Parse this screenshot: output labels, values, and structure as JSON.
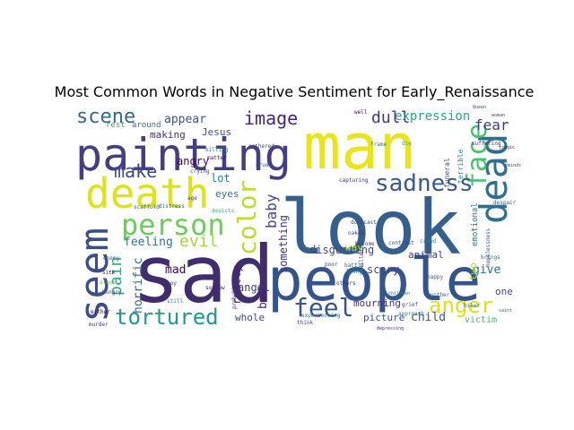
{
  "chart_data": {
    "type": "wordcloud",
    "title": "Most Common Words in Negative Sentiment for Early_Renaissance",
    "colormap": "viridis",
    "background": "#ffffff",
    "words": [
      {
        "text": "sad",
        "weight": 100,
        "vertical": false,
        "color": "#3f2d6e"
      },
      {
        "text": "look",
        "weight": 92,
        "vertical": false,
        "color": "#35608d"
      },
      {
        "text": "people",
        "weight": 88,
        "vertical": false,
        "color": "#33548c"
      },
      {
        "text": "man",
        "weight": 84,
        "vertical": false,
        "color": "#e9e51a"
      },
      {
        "text": "painting",
        "weight": 70,
        "vertical": false,
        "color": "#433e85"
      },
      {
        "text": "death",
        "weight": 66,
        "vertical": false,
        "color": "#dde318"
      },
      {
        "text": "dead",
        "weight": 56,
        "vertical": true,
        "color": "#2d708e"
      },
      {
        "text": "seem",
        "weight": 54,
        "vertical": true,
        "color": "#3c4e8a"
      },
      {
        "text": "person",
        "weight": 46,
        "vertical": false,
        "color": "#6ccd5a"
      },
      {
        "text": "face",
        "weight": 42,
        "vertical": true,
        "color": "#4ac16d"
      },
      {
        "text": "feel",
        "weight": 40,
        "vertical": false,
        "color": "#3a548c"
      },
      {
        "text": "color",
        "weight": 38,
        "vertical": true,
        "color": "#b8de29"
      },
      {
        "text": "sadness",
        "weight": 34,
        "vertical": false,
        "color": "#38598c"
      },
      {
        "text": "anger",
        "weight": 32,
        "vertical": false,
        "color": "#dbe11e"
      },
      {
        "text": "tortured",
        "weight": 30,
        "vertical": false,
        "color": "#1f9a8a"
      },
      {
        "text": "scene",
        "weight": 28,
        "vertical": false,
        "color": "#31688e"
      },
      {
        "text": "make",
        "weight": 26,
        "vertical": false,
        "color": "#3e4989"
      },
      {
        "text": "image",
        "weight": 24,
        "vertical": false,
        "color": "#482475"
      },
      {
        "text": "pain",
        "weight": 23,
        "vertical": true,
        "color": "#27ad81"
      },
      {
        "text": "evil",
        "weight": 22,
        "vertical": false,
        "color": "#a0da39"
      },
      {
        "text": "baby",
        "weight": 21,
        "vertical": true,
        "color": "#404688"
      },
      {
        "text": "dull",
        "weight": 20,
        "vertical": false,
        "color": "#46327e"
      },
      {
        "text": "fear",
        "weight": 19,
        "vertical": false,
        "color": "#443a83"
      },
      {
        "text": "expression",
        "weight": 18,
        "vertical": false,
        "color": "#22a884"
      },
      {
        "text": "appear",
        "weight": 16,
        "vertical": false,
        "color": "#3b528b"
      },
      {
        "text": "feeling",
        "weight": 16,
        "vertical": false,
        "color": "#2a788e"
      },
      {
        "text": "really",
        "weight": 15,
        "vertical": true,
        "color": "#482677"
      },
      {
        "text": "horrific",
        "weight": 15,
        "vertical": true,
        "color": "#31688e"
      },
      {
        "text": "mad",
        "weight": 14,
        "vertical": false,
        "color": "#440154"
      },
      {
        "text": "bad",
        "weight": 14,
        "vertical": true,
        "color": "#481f70"
      },
      {
        "text": "angel",
        "weight": 14,
        "vertical": false,
        "color": "#453781"
      },
      {
        "text": "child",
        "weight": 14,
        "vertical": false,
        "color": "#3b528b"
      },
      {
        "text": "give",
        "weight": 14,
        "vertical": false,
        "color": "#2c728e"
      },
      {
        "text": "angry",
        "weight": 13,
        "vertical": false,
        "color": "#440154"
      },
      {
        "text": "disgusting",
        "weight": 13,
        "vertical": false,
        "color": "#3e4a89"
      },
      {
        "text": "Jesus",
        "weight": 12,
        "vertical": false,
        "color": "#3b528b"
      },
      {
        "text": "lot",
        "weight": 12,
        "vertical": false,
        "color": "#25858e"
      },
      {
        "text": "eyes",
        "weight": 12,
        "vertical": false,
        "color": "#2a788e"
      },
      {
        "text": "making",
        "weight": 12,
        "vertical": false,
        "color": "#472c7a"
      },
      {
        "text": "something",
        "weight": 12,
        "vertical": true,
        "color": "#46327e"
      },
      {
        "text": "scary",
        "weight": 12,
        "vertical": false,
        "color": "#3e4a89"
      },
      {
        "text": "animal",
        "weight": 12,
        "vertical": false,
        "color": "#443983"
      },
      {
        "text": "whole",
        "weight": 12,
        "vertical": false,
        "color": "#3e4989"
      },
      {
        "text": "mourning",
        "weight": 12,
        "vertical": false,
        "color": "#46307e"
      },
      {
        "text": "picture",
        "weight": 11,
        "vertical": false,
        "color": "#3b528b"
      },
      {
        "text": "two",
        "weight": 11,
        "vertical": true,
        "color": "#b5de2b"
      },
      {
        "text": "one",
        "weight": 11,
        "vertical": false,
        "color": "#404688"
      },
      {
        "text": "victim",
        "weight": 11,
        "vertical": false,
        "color": "#3fbc73"
      },
      {
        "text": "rest",
        "weight": 10,
        "vertical": false,
        "color": "#2db27d"
      },
      {
        "text": "around",
        "weight": 10,
        "vertical": false,
        "color": "#2a788e"
      },
      {
        "text": "way",
        "weight": 10,
        "vertical": false,
        "color": "#b5de2b"
      },
      {
        "text": "emotional",
        "weight": 10,
        "vertical": true,
        "color": "#2c728e"
      },
      {
        "text": "terrible",
        "weight": 9,
        "vertical": true,
        "color": "#23888e"
      },
      {
        "text": "funeral",
        "weight": 9,
        "vertical": true,
        "color": "#3b528b"
      },
      {
        "text": "boy",
        "weight": 7,
        "vertical": false,
        "color": "#472d7b"
      },
      {
        "text": "killing",
        "weight": 7,
        "vertical": false,
        "color": "#2a788e"
      },
      {
        "text": "crying",
        "weight": 7,
        "vertical": false,
        "color": "#433e85"
      },
      {
        "text": "crude",
        "weight": 7,
        "vertical": false,
        "color": "#3b528b"
      },
      {
        "text": "still",
        "weight": 6,
        "vertical": false,
        "color": "#25838e"
      },
      {
        "text": "poor",
        "weight": 6,
        "vertical": false,
        "color": "#414487"
      },
      {
        "text": "despair",
        "weight": 6,
        "vertical": false,
        "color": "#365c8d"
      },
      {
        "text": "scaffold",
        "weight": 6,
        "vertical": false,
        "color": "#2e6e8e"
      },
      {
        "text": "distress",
        "weight": 6,
        "vertical": false,
        "color": "#31688e"
      },
      {
        "text": "depicts",
        "weight": 6,
        "vertical": false,
        "color": "#35b779"
      },
      {
        "text": "grief",
        "weight": 6,
        "vertical": false,
        "color": "#39558c"
      },
      {
        "text": "brings",
        "weight": 6,
        "vertical": false,
        "color": "#2c728e"
      },
      {
        "text": "hiker",
        "weight": 6,
        "vertical": false,
        "color": "#2a788e"
      },
      {
        "text": "alone",
        "weight": 6,
        "vertical": false,
        "color": "#6ece58"
      },
      {
        "text": "enemy",
        "weight": 6,
        "vertical": false,
        "color": "#31688e"
      },
      {
        "text": "sick",
        "weight": 6,
        "vertical": false,
        "color": "#481668"
      },
      {
        "text": "hungry",
        "weight": 6,
        "vertical": false,
        "color": "#3b528b"
      },
      {
        "text": "murder",
        "weight": 6,
        "vertical": false,
        "color": "#453882"
      },
      {
        "text": "probably",
        "weight": 6,
        "vertical": true,
        "color": "#453781"
      },
      {
        "text": "think",
        "weight": 6,
        "vertical": false,
        "color": "#3e4a89"
      },
      {
        "text": "experiencing",
        "weight": 5,
        "vertical": false,
        "color": "#2c728e"
      },
      {
        "text": "another",
        "weight": 5,
        "vertical": false,
        "color": "#31688e"
      },
      {
        "text": "others",
        "weight": 5,
        "vertical": false,
        "color": "#482878"
      },
      {
        "text": "crowd",
        "weight": 5,
        "vertical": false,
        "color": "#26828e"
      },
      {
        "text": "become",
        "weight": 5,
        "vertical": false,
        "color": "#433e85"
      },
      {
        "text": "contrast",
        "weight": 5,
        "vertical": false,
        "color": "#3e4a89"
      },
      {
        "text": "battle",
        "weight": 5,
        "vertical": false,
        "color": "#2c728e"
      },
      {
        "text": "killed",
        "weight": 5,
        "vertical": true,
        "color": "#472c7a"
      },
      {
        "text": "downcast",
        "weight": 5,
        "vertical": false,
        "color": "#404588"
      },
      {
        "text": "naked",
        "weight": 5,
        "vertical": false,
        "color": "#433d84"
      },
      {
        "text": "frame",
        "weight": 5,
        "vertical": false,
        "color": "#287c8e"
      },
      {
        "text": "die",
        "weight": 5,
        "vertical": false,
        "color": "#29af7f"
      },
      {
        "text": "suffering",
        "weight": 5,
        "vertical": false,
        "color": "#46327e"
      },
      {
        "text": "happy",
        "weight": 5,
        "vertical": false,
        "color": "#3b528b"
      },
      {
        "text": "sorrow",
        "weight": 5,
        "vertical": false,
        "color": "#48186a"
      },
      {
        "text": "hopelessness",
        "weight": 5,
        "vertical": true,
        "color": "#3b528b"
      },
      {
        "text": "lying",
        "weight": 5,
        "vertical": false,
        "color": "#21918c"
      },
      {
        "text": "well",
        "weight": 5,
        "vertical": false,
        "color": "#440154"
      },
      {
        "text": "capturing",
        "weight": 5,
        "vertical": false,
        "color": "#472a7a"
      },
      {
        "text": "gathered",
        "weight": 5,
        "vertical": false,
        "color": "#3e4a89"
      },
      {
        "text": "matter",
        "weight": 5,
        "vertical": false,
        "color": "#460a5d"
      },
      {
        "text": "age",
        "weight": 5,
        "vertical": false,
        "color": "#414487"
      },
      {
        "text": "either",
        "weight": 5,
        "vertical": false,
        "color": "#450457"
      },
      {
        "text": "approach",
        "weight": 5,
        "vertical": false,
        "color": "#287d8e"
      },
      {
        "text": "depressing",
        "weight": 4,
        "vertical": false,
        "color": "#46307e"
      },
      {
        "text": "Queen",
        "weight": 4,
        "vertical": false,
        "color": "#3b528b"
      },
      {
        "text": "woman",
        "weight": 4,
        "vertical": false,
        "color": "#414487"
      },
      {
        "text": "saint",
        "weight": 4,
        "vertical": false,
        "color": "#31688e"
      },
      {
        "text": "reminds",
        "weight": 4,
        "vertical": false,
        "color": "#3b528b"
      },
      {
        "text": "tragic",
        "weight": 4,
        "vertical": false,
        "color": "#482374"
      },
      {
        "text": "children",
        "weight": 4,
        "vertical": false,
        "color": "#2a788e"
      }
    ]
  }
}
